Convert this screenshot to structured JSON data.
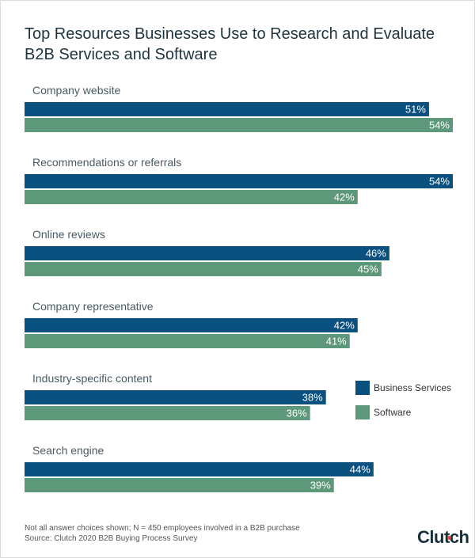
{
  "chart_data": {
    "type": "bar",
    "orientation": "horizontal",
    "title": "Top Resources Businesses Use to Research and Evaluate B2B Services and Software",
    "categories": [
      "Company website",
      "Recommendations or referrals",
      "Online reviews",
      "Company representative",
      "Industry-specific content",
      "Search engine"
    ],
    "series": [
      {
        "name": "Business Services",
        "color": "#0b5180",
        "values": [
          51,
          54,
          46,
          42,
          38,
          44
        ]
      },
      {
        "name": "Software",
        "color": "#5e987b",
        "values": [
          54,
          42,
          45,
          41,
          36,
          39
        ]
      }
    ],
    "value_suffix": "%",
    "xlim": [
      0,
      54
    ],
    "grid": false,
    "legend": "right"
  },
  "footnote": {
    "line1": "Not all answer choices shown; N = 450 employees involved in a B2B purchase",
    "line2": "Source: Clutch 2020 B2B Buying Process Survey"
  },
  "logo": "Clutch"
}
